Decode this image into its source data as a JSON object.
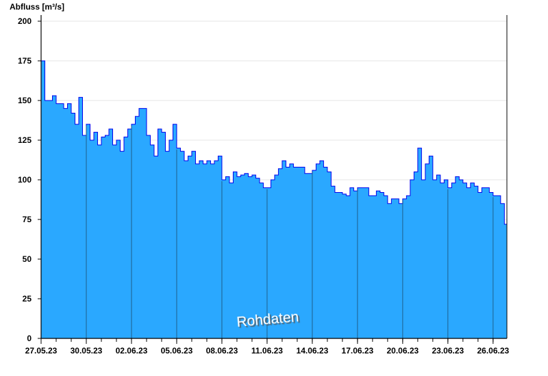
{
  "chart_data": {
    "type": "area",
    "ylabel": "Abfluss [m³/s]",
    "annotation": "Rohdaten",
    "ylim": [
      0,
      200
    ],
    "yticks": [
      0,
      25,
      50,
      75,
      100,
      125,
      150,
      175,
      200
    ],
    "xlim": [
      "27.05.23 00:00",
      "26.06.23 22:00"
    ],
    "xticks": [
      "27.05.23",
      "30.05.23",
      "02.06.23",
      "05.06.23",
      "08.06.23",
      "11.06.23",
      "14.06.23",
      "17.06.23",
      "20.06.23",
      "23.06.23",
      "26.06.23"
    ],
    "grid": "horizontal",
    "colors": {
      "fill": "#2aa8ff",
      "line": "#0000ee",
      "grid": "#e6e6e6",
      "day_lines": "#1f5f8a"
    },
    "series": [
      {
        "date": "27.05.23",
        "values_6h": [
          175,
          150,
          150,
          153
        ]
      },
      {
        "date": "28.05.23",
        "values_6h": [
          148,
          148,
          145,
          148
        ]
      },
      {
        "date": "29.05.23",
        "values_6h": [
          142,
          135,
          152,
          128
        ]
      },
      {
        "date": "30.05.23",
        "values_6h": [
          135,
          125,
          130,
          122
        ]
      },
      {
        "date": "31.05.23",
        "values_6h": [
          127,
          128,
          132,
          122
        ]
      },
      {
        "date": "01.06.23",
        "values_6h": [
          125,
          118,
          127,
          132
        ]
      },
      {
        "date": "02.06.23",
        "values_6h": [
          135,
          140,
          145,
          145
        ]
      },
      {
        "date": "03.06.23",
        "values_6h": [
          128,
          122,
          115,
          132
        ]
      },
      {
        "date": "04.06.23",
        "values_6h": [
          130,
          118,
          125,
          135
        ]
      },
      {
        "date": "05.06.23",
        "values_6h": [
          120,
          118,
          112,
          115
        ]
      },
      {
        "date": "06.06.23",
        "values_6h": [
          118,
          110,
          112,
          110
        ]
      },
      {
        "date": "07.06.23",
        "values_6h": [
          112,
          110,
          112,
          115
        ]
      },
      {
        "date": "08.06.23",
        "values_6h": [
          100,
          102,
          98,
          105
        ]
      },
      {
        "date": "09.06.23",
        "values_6h": [
          102,
          103,
          104,
          102
        ]
      },
      {
        "date": "10.06.23",
        "values_6h": [
          103,
          101,
          98,
          95
        ]
      },
      {
        "date": "11.06.23",
        "values_6h": [
          95,
          100,
          103,
          107
        ]
      },
      {
        "date": "12.06.23",
        "values_6h": [
          112,
          108,
          110,
          108
        ]
      },
      {
        "date": "13.06.23",
        "values_6h": [
          108,
          108,
          104,
          104
        ]
      },
      {
        "date": "14.06.23",
        "values_6h": [
          106,
          110,
          112,
          108
        ]
      },
      {
        "date": "15.06.23",
        "values_6h": [
          105,
          96,
          92,
          92
        ]
      },
      {
        "date": "16.06.23",
        "values_6h": [
          91,
          90,
          95,
          93
        ]
      },
      {
        "date": "17.06.23",
        "values_6h": [
          95,
          95,
          95,
          90
        ]
      },
      {
        "date": "18.06.23",
        "values_6h": [
          90,
          93,
          92,
          90
        ]
      },
      {
        "date": "19.06.23",
        "values_6h": [
          85,
          88,
          88,
          85
        ]
      },
      {
        "date": "20.06.23",
        "values_6h": [
          88,
          90,
          100,
          105
        ]
      },
      {
        "date": "21.06.23",
        "values_6h": [
          120,
          100,
          110,
          115
        ]
      },
      {
        "date": "22.06.23",
        "values_6h": [
          100,
          103,
          98,
          100
        ]
      },
      {
        "date": "23.06.23",
        "values_6h": [
          95,
          98,
          102,
          100
        ]
      },
      {
        "date": "24.06.23",
        "values_6h": [
          98,
          95,
          98,
          96
        ]
      },
      {
        "date": "25.06.23",
        "values_6h": [
          92,
          95,
          95,
          92
        ]
      },
      {
        "date": "26.06.23",
        "values_6h": [
          90,
          90,
          85,
          72
        ]
      },
      {
        "date": "27.06.23",
        "values_6h": [
          75
        ]
      }
    ]
  }
}
